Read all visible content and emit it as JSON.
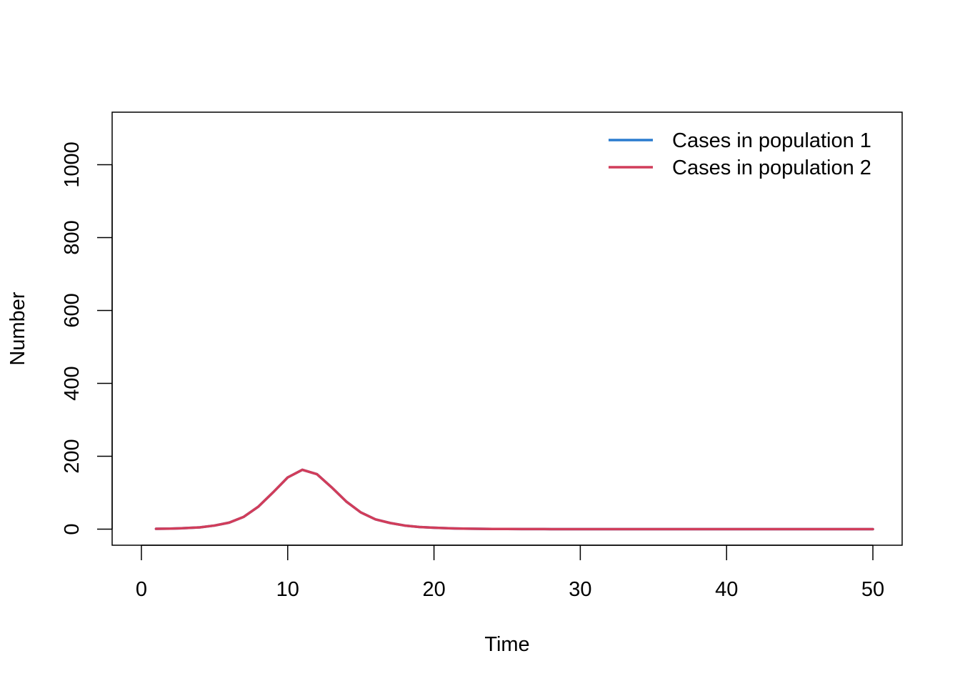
{
  "chart_data": {
    "type": "line",
    "title": "",
    "xlabel": "Time",
    "ylabel": "Number",
    "xlim": [
      0,
      50
    ],
    "ylim": [
      0,
      1100
    ],
    "x_ticks": [
      0,
      10,
      20,
      30,
      40,
      50
    ],
    "y_ticks": [
      0,
      200,
      400,
      600,
      800,
      1000
    ],
    "x_tick_labels": [
      "0",
      "10",
      "20",
      "30",
      "40",
      "50"
    ],
    "y_tick_labels": [
      "0",
      "200",
      "400",
      "600",
      "800",
      "1000"
    ],
    "grid": false,
    "legend_position": "top-right",
    "x": [
      1,
      2,
      3,
      4,
      5,
      6,
      7,
      8,
      9,
      10,
      11,
      12,
      13,
      14,
      15,
      16,
      17,
      18,
      19,
      20,
      21,
      22,
      23,
      24,
      25,
      26,
      27,
      28,
      29,
      30,
      31,
      32,
      33,
      34,
      35,
      36,
      37,
      38,
      39,
      40,
      41,
      42,
      43,
      44,
      45,
      46,
      47,
      48,
      49,
      50
    ],
    "series": [
      {
        "name": "Cases in population 1",
        "color": "#2a7ccf",
        "values": [
          1,
          1.5,
          3,
          5,
          10,
          18,
          34,
          62,
          101,
          142,
          163,
          151,
          115,
          76,
          46,
          27,
          17,
          10,
          6,
          4,
          2.5,
          1.5,
          1,
          0.7,
          0.5,
          0.4,
          0.3,
          0.2,
          0.2,
          0.1,
          0.1,
          0.1,
          0,
          0,
          0,
          0,
          0,
          0,
          0,
          0,
          0,
          0,
          0,
          0,
          0,
          0,
          0,
          0,
          0,
          0
        ]
      },
      {
        "name": "Cases in population 2",
        "color": "#d13d5a",
        "values": [
          1,
          1.5,
          3,
          5,
          10,
          18,
          34,
          62,
          101,
          142,
          163,
          151,
          115,
          76,
          46,
          27,
          17,
          10,
          6,
          4,
          2.5,
          1.5,
          1,
          0.7,
          0.5,
          0.4,
          0.3,
          0.2,
          0.2,
          0.1,
          0.1,
          0.1,
          0,
          0,
          0,
          0,
          0,
          0,
          0,
          0,
          0,
          0,
          0,
          0,
          0,
          0,
          0,
          0,
          0,
          0
        ]
      }
    ]
  }
}
